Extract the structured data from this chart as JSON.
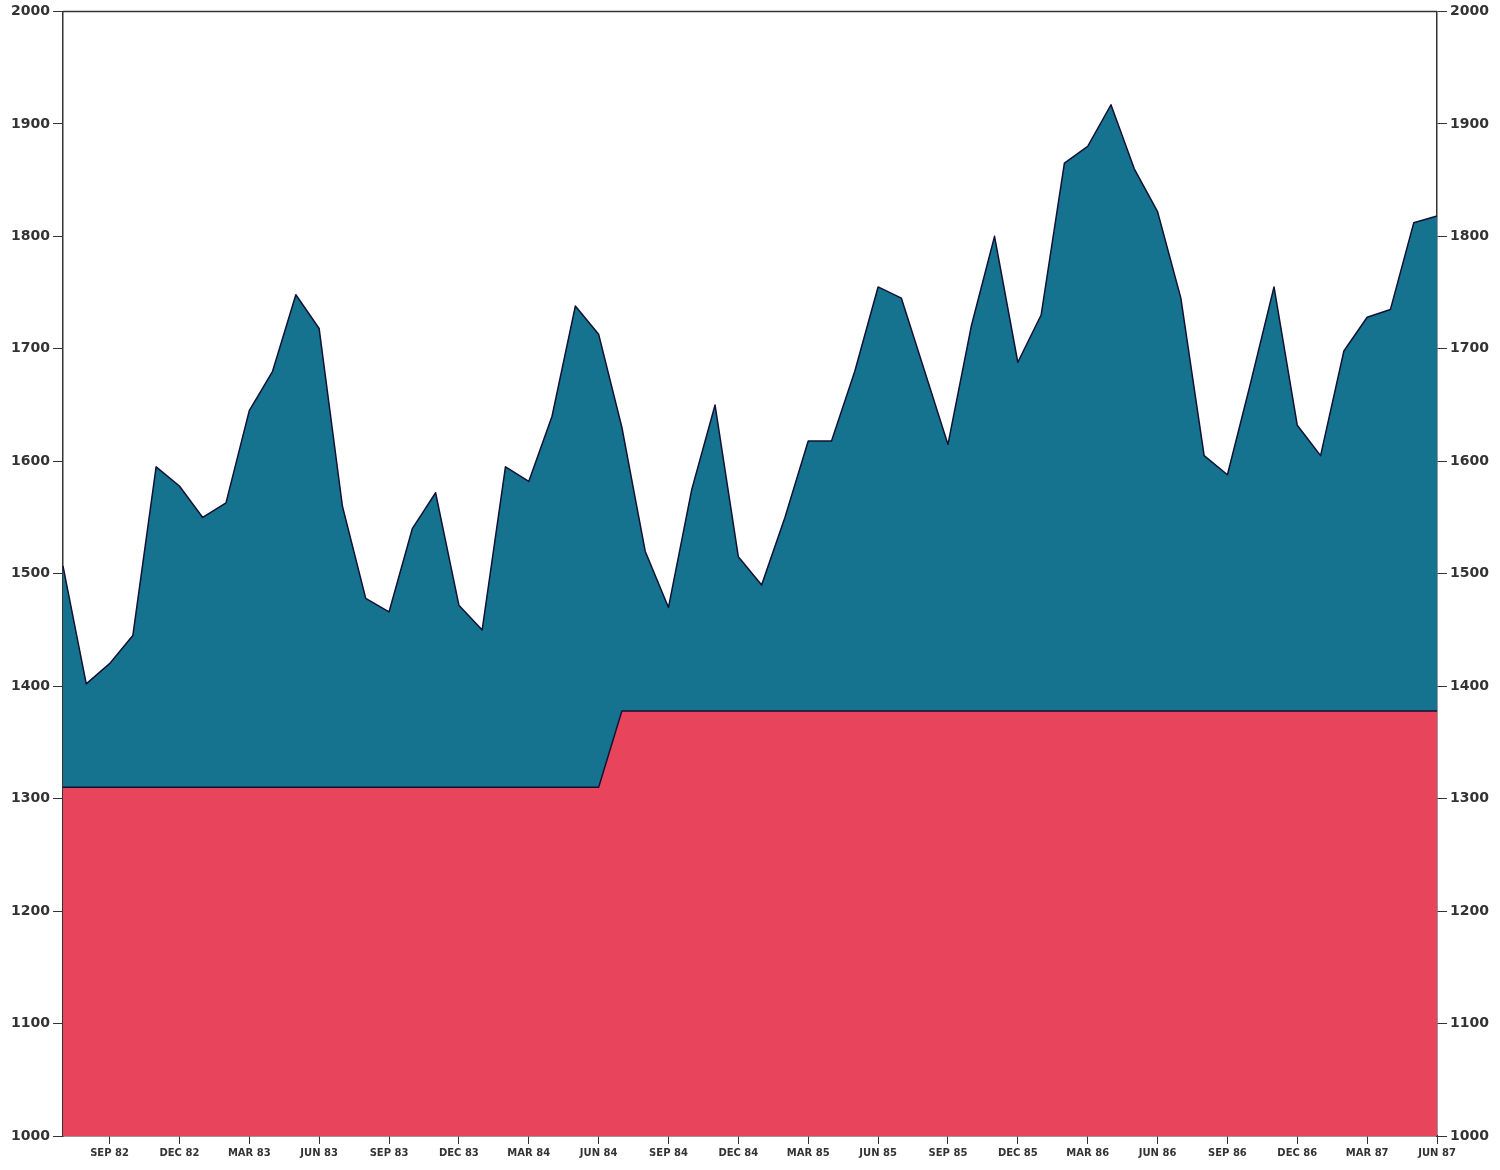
{
  "chart_data": {
    "type": "area",
    "categories": [
      null,
      null,
      "SEP 82",
      null,
      null,
      "DEC 82",
      null,
      null,
      "MAR 83",
      null,
      null,
      "JUN 83",
      null,
      null,
      "SEP 83",
      null,
      null,
      "DEC 83",
      null,
      null,
      "MAR 84",
      null,
      null,
      "JUN 84",
      null,
      null,
      "SEP 84",
      null,
      null,
      "DEC 84",
      null,
      null,
      "MAR 85",
      null,
      null,
      "JUN 85",
      null,
      null,
      "SEP 85",
      null,
      null,
      "DEC 85",
      null,
      null,
      "MAR 86",
      null,
      null,
      "JUN 86",
      null,
      null,
      "SEP 86",
      null,
      null,
      "DEC 86",
      null,
      null,
      "MAR 87",
      null,
      null,
      "JUN 87"
    ],
    "series": [
      {
        "color": "#16738f",
        "values": [
          1507,
          1402,
          1420,
          1445,
          1595,
          1578,
          1550,
          1563,
          1645,
          1680,
          1748,
          1718,
          1560,
          1478,
          1466,
          1540,
          1572,
          1472,
          1450,
          1595,
          1582,
          1640,
          1738,
          1713,
          1630,
          1520,
          1470,
          1575,
          1650,
          1515,
          1490,
          1550,
          1618,
          1618,
          1680,
          1755,
          1745,
          1680,
          1615,
          1720,
          1800,
          1688,
          1730,
          1865,
          1880,
          1917,
          1860,
          1822,
          1745,
          1605,
          1588,
          1670,
          1755,
          1632,
          1605,
          1698,
          1728,
          1735,
          1812,
          1818
        ]
      },
      {
        "color": "#e8455c",
        "values": [
          1310,
          1310,
          1310,
          1310,
          1310,
          1310,
          1310,
          1310,
          1310,
          1310,
          1310,
          1310,
          1310,
          1310,
          1310,
          1310,
          1310,
          1310,
          1310,
          1310,
          1310,
          1310,
          1310,
          1310,
          1378,
          1378,
          1378,
          1378,
          1378,
          1378,
          1378,
          1378,
          1378,
          1378,
          1378,
          1378,
          1378,
          1378,
          1378,
          1378,
          1378,
          1378,
          1378,
          1378,
          1378,
          1378,
          1378,
          1378,
          1378,
          1378,
          1378,
          1378,
          1378,
          1378,
          1378,
          1378,
          1378,
          1378,
          1378,
          1378
        ]
      }
    ],
    "ylim": [
      1000,
      2000
    ],
    "yticks": [
      1000,
      1100,
      1200,
      1300,
      1400,
      1500,
      1600,
      1700,
      1800,
      1900,
      2000
    ],
    "y2lim": [
      1000,
      2000
    ],
    "y2ticks": [
      1000,
      1100,
      1200,
      1300,
      1400,
      1500,
      1600,
      1700,
      1800,
      1900,
      2000
    ],
    "grid": false,
    "legend": false,
    "marker": "none",
    "line_style": "solid"
  }
}
